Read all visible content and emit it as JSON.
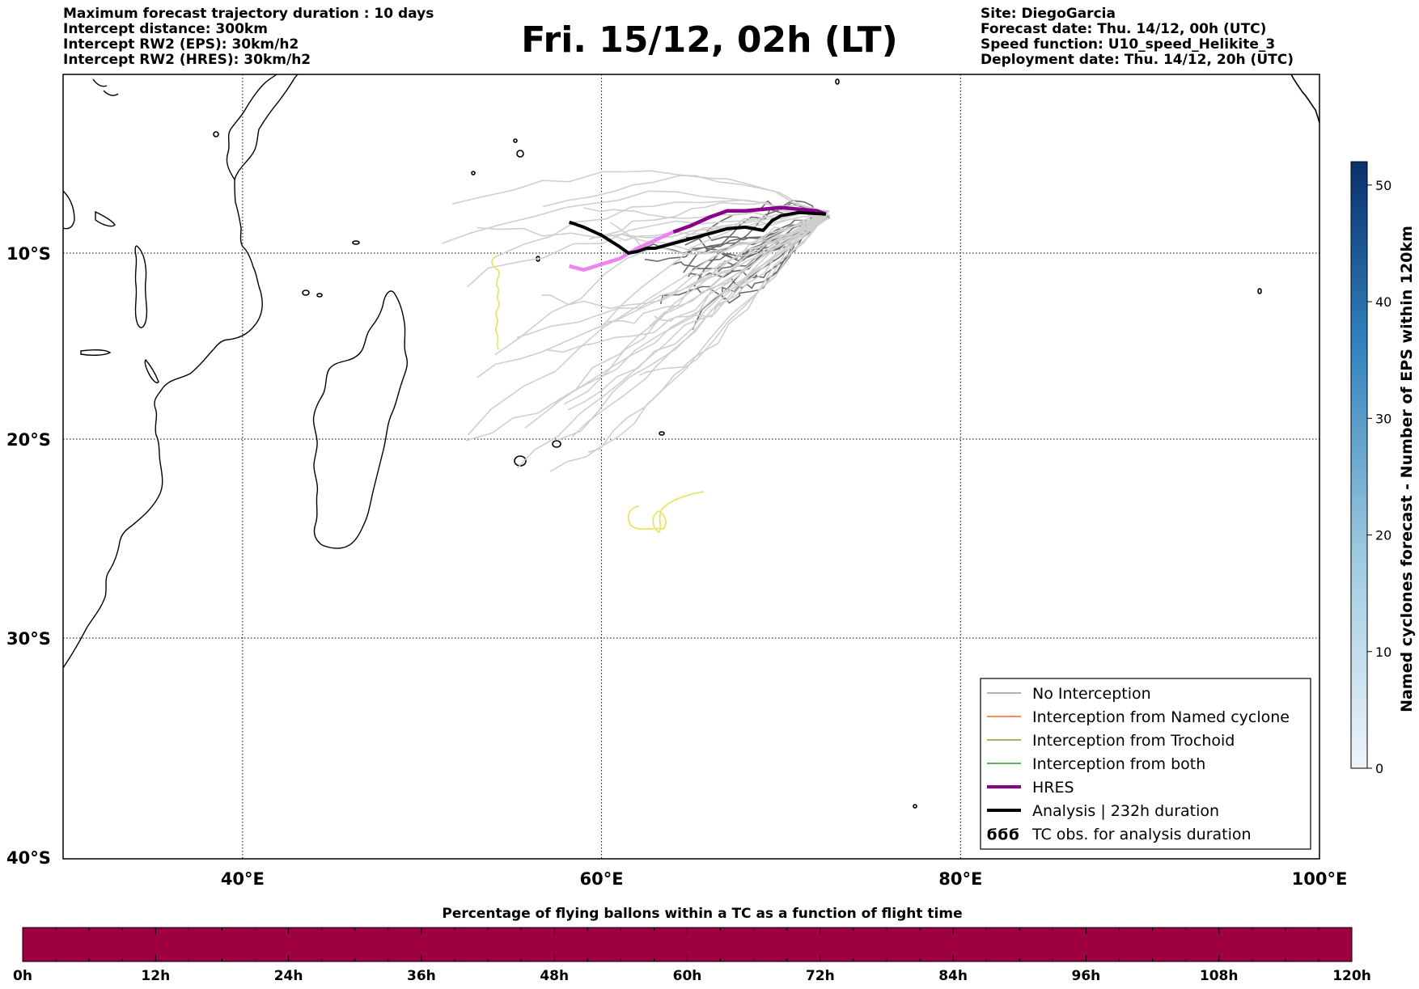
{
  "header": {
    "left": [
      "Maximum forecast trajectory duration : 10 days",
      "Intercept distance: 300km",
      "Intercept RW2 (EPS):  30km/h2",
      "Intercept RW2 (HRES): 30km/h2"
    ],
    "title": "Fri. 15/12, 02h (LT)",
    "right": [
      "Site: DiegoGarcia",
      "Forecast date: Thu. 14/12, 00h (UTC)",
      "Speed function: U10_speed_Helikite_3",
      "Deployment date: Thu. 14/12, 20h (UTC)"
    ]
  },
  "map": {
    "lon_range": [
      30,
      100
    ],
    "lat_range": [
      -40,
      1
    ],
    "lon_ticks": [
      {
        "value": 40,
        "label": "40°E"
      },
      {
        "value": 60,
        "label": "60°E"
      },
      {
        "value": 80,
        "label": "80°E"
      },
      {
        "value": 100,
        "label": "100°E"
      }
    ],
    "lat_ticks": [
      {
        "value": -10,
        "label": "10°S"
      },
      {
        "value": -20,
        "label": "20°S"
      },
      {
        "value": -30,
        "label": "30°S"
      },
      {
        "value": -40,
        "label": "40°S"
      }
    ],
    "grid": "dotted",
    "colors": {
      "eps_light": "#cfcfcf",
      "eps_dark": "#6a6a6a",
      "hres": "#8b008b",
      "hres_early": "#ee82ee",
      "analysis": "#000000",
      "trochoid": "#e9e46a",
      "coast": "#000000"
    }
  },
  "chart_data": [
    {
      "type": "line",
      "title": "Fri. 15/12, 02h (LT)",
      "xlabel": "",
      "ylabel": "",
      "xlim": [
        30,
        100
      ],
      "ylim": [
        -40,
        1
      ],
      "series": [
        {
          "name": "HRES",
          "x": [
            58.2,
            59,
            60,
            61,
            62,
            63,
            64,
            65,
            66,
            67,
            68,
            69,
            70,
            71,
            72,
            72.5
          ],
          "y": [
            -10.7,
            -10.9,
            -10.6,
            -10.3,
            -9.7,
            -9.2,
            -8.7,
            -8.3,
            -7.8,
            -7.4,
            -7.4,
            -7.3,
            -7.2,
            -7.3,
            -7.4,
            -7.6
          ]
        },
        {
          "name": "Analysis | 232h duration",
          "x": [
            72.5,
            71,
            70,
            69.5,
            69,
            68,
            67,
            66,
            65,
            64,
            63,
            62.5,
            62,
            61.5,
            61,
            60,
            59,
            58.5,
            58.2
          ],
          "y": [
            -7.6,
            -7.5,
            -7.7,
            -8,
            -8.6,
            -8.4,
            -8.5,
            -8.8,
            -9.1,
            -9.4,
            -9.7,
            -9.7,
            -9.9,
            -10,
            -9.6,
            -8.9,
            -8.4,
            -8.2,
            -8.1
          ]
        },
        {
          "name": "No Interception",
          "x": [
            72.5,
            68,
            64,
            60,
            56
          ],
          "y": [
            -7.6,
            -9.5,
            -12,
            -14,
            -16
          ]
        }
      ]
    },
    {
      "type": "heatmap",
      "title": "",
      "ylabel": "Named cyclones forecast - Number of EPS within 120km",
      "ylim": [
        0,
        52
      ],
      "ticks": [
        0,
        10,
        20,
        30,
        40,
        50
      ]
    },
    {
      "type": "bar",
      "title": "Percentage of flying ballons within a TC as a function of flight time",
      "xlim": [
        0,
        120
      ],
      "categories": [
        "0h",
        "12h",
        "24h",
        "36h",
        "48h",
        "60h",
        "72h",
        "84h",
        "96h",
        "108h",
        "120h"
      ],
      "fill_color": "#9e0142"
    }
  ],
  "legend": {
    "items": [
      {
        "label": "No Interception",
        "color": "#808080",
        "width": 1.2,
        "kind": "line"
      },
      {
        "label": "Interception from Named cyclone",
        "color": "#ff4500",
        "width": 1.2,
        "kind": "line"
      },
      {
        "label": "Interception from Trochoid",
        "color": "#808000",
        "width": 1.2,
        "kind": "line"
      },
      {
        "label": "Interception from both",
        "color": "#008000",
        "width": 1.2,
        "kind": "line"
      },
      {
        "label": "HRES",
        "color": "#8b008b",
        "width": 4,
        "kind": "line"
      },
      {
        "label": "Analysis | 232h duration",
        "color": "#000000",
        "width": 4,
        "kind": "line"
      },
      {
        "label": "TC obs. for analysis duration",
        "color": "#000000",
        "width": 2,
        "kind": "symbol",
        "symbol": "ϭϭϭ"
      }
    ]
  },
  "colorbar": {
    "label": "Named cyclones forecast - Number of EPS within 120km",
    "ticks": [
      "0",
      "10",
      "20",
      "30",
      "40",
      "50"
    ],
    "min": 0,
    "max": 52,
    "color_low": "#e3eef9",
    "color_high": "#08306b"
  },
  "timebar": {
    "title": "Percentage of flying ballons within a TC as a function of flight time",
    "labels": [
      "0h",
      "12h",
      "24h",
      "36h",
      "48h",
      "60h",
      "72h",
      "84h",
      "96h",
      "108h",
      "120h"
    ],
    "fill": "#9e0142"
  }
}
